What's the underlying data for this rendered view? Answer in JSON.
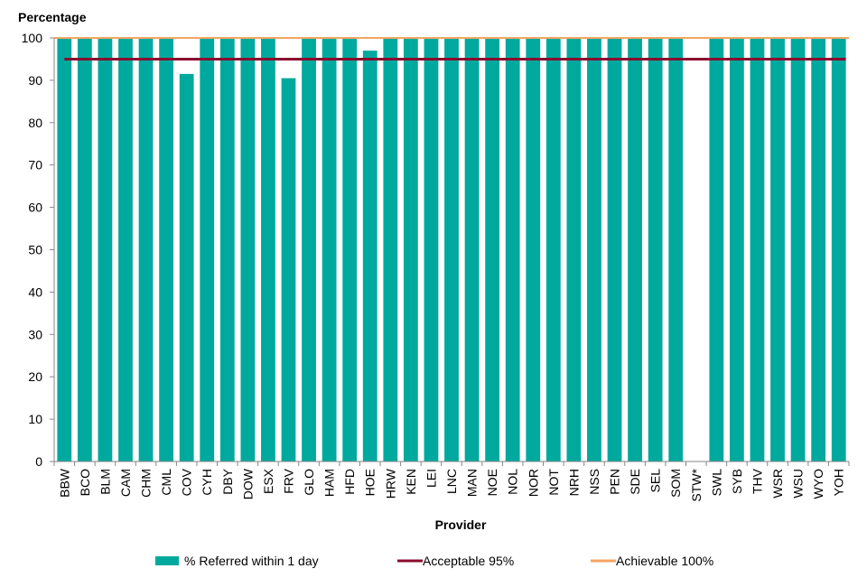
{
  "chart_data": {
    "type": "bar",
    "ylabel": "Percentage",
    "xlabel": "Provider",
    "ylim": [
      0,
      100
    ],
    "yticks": [
      0,
      10,
      20,
      30,
      40,
      50,
      60,
      70,
      80,
      90,
      100
    ],
    "categories": [
      "BBW",
      "BCO",
      "BLM",
      "CAM",
      "CHM",
      "CML",
      "COV",
      "CYH",
      "DBY",
      "DOW",
      "ESX",
      "FRV",
      "GLO",
      "HAM",
      "HFD",
      "HOE",
      "HRW",
      "KEN",
      "LEI",
      "LNC",
      "MAN",
      "NOE",
      "NOL",
      "NOR",
      "NOT",
      "NRH",
      "NSS",
      "PEN",
      "SDE",
      "SEL",
      "SOM",
      "STW*",
      "SWL",
      "SYB",
      "THV",
      "WSR",
      "WSU",
      "WYO",
      "YOH"
    ],
    "series": [
      {
        "name": "% Referred within 1 day",
        "color": "#00A99D",
        "values": [
          100,
          100,
          100,
          100,
          100,
          100,
          91.5,
          100,
          100,
          100,
          100,
          90.5,
          100,
          100,
          100,
          97,
          100,
          100,
          100,
          100,
          100,
          100,
          100,
          100,
          100,
          100,
          100,
          100,
          100,
          100,
          100,
          null,
          100,
          100,
          100,
          100,
          100,
          100,
          100
        ]
      }
    ],
    "reference_lines": [
      {
        "name": "Acceptable 95%",
        "value": 95,
        "color": "#8B0A2E"
      },
      {
        "name": "Achievable 100%",
        "value": 100,
        "color": "#F4A460"
      }
    ],
    "grid": false,
    "legend_position": "bottom"
  }
}
